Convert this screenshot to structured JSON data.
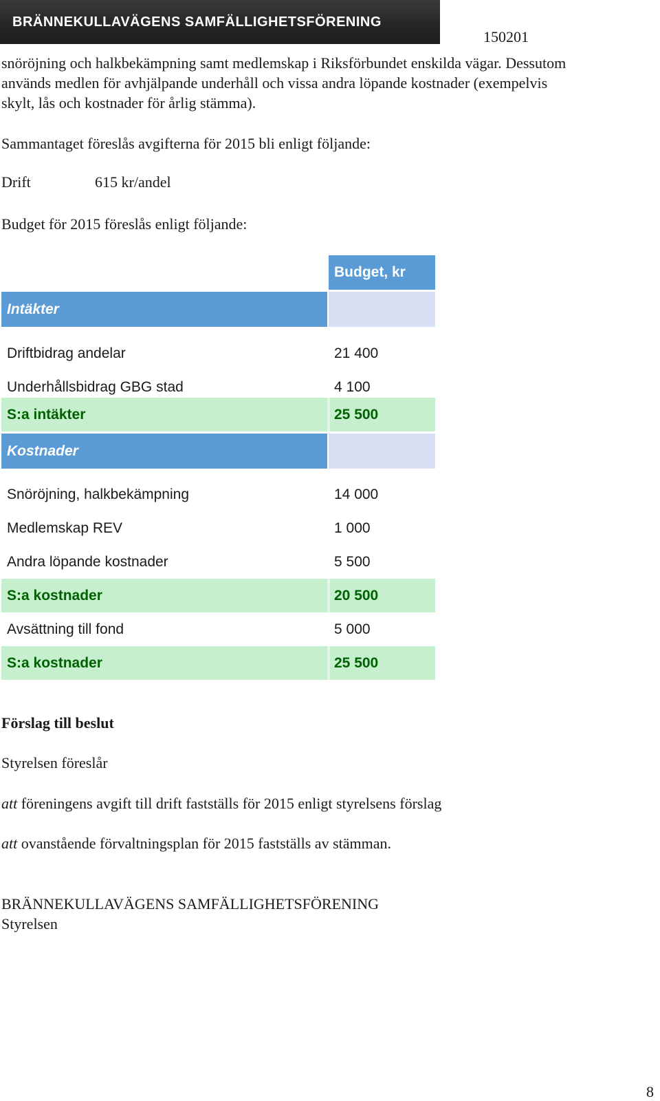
{
  "header": {
    "banner_title": "BRÄNNEKULLAVÄGENS SAMFÄLLIGHETSFÖRENING",
    "date": "150201"
  },
  "intro": {
    "lines": [
      "snöröjning och halkbekämpning samt medlemskap i Riksförbundet enskilda vägar. Dessutom",
      "används medlen för avhjälpande underhåll och vissa andra löpande kostnader (exempelvis",
      "skylt, lås och kostnader för årlig stämma)."
    ],
    "fees_intro": "Sammantaget föreslås avgifterna för 2015 bli enligt följande:",
    "fee_label": "Drift",
    "fee_value": "615 kr/andel",
    "budget_intro": "Budget för 2015 föreslås enligt följande:"
  },
  "budget_table": {
    "column_header": "Budget, kr",
    "income_section": "Intäkter",
    "income_rows": [
      {
        "label": "Driftbidrag andelar",
        "value": "21 400"
      },
      {
        "label": "Underhållsbidrag GBG stad",
        "value": "4 100"
      }
    ],
    "income_total": {
      "label": "S:a intäkter",
      "value": "25 500"
    },
    "cost_section": "Kostnader",
    "cost_rows": [
      {
        "label": "Snöröjning, halkbekämpning",
        "value": "14 000"
      },
      {
        "label": "Medlemskap REV",
        "value": "1 000"
      },
      {
        "label": "Andra löpande kostnader",
        "value": "5 500"
      }
    ],
    "cost_total": {
      "label": "S:a kostnader",
      "value": "20 500"
    },
    "fund_row": {
      "label": "Avsättning till fond",
      "value": "5 000"
    },
    "grand_total": {
      "label": "S:a kostnader",
      "value": "25 500"
    }
  },
  "decision": {
    "heading": "Förslag till beslut",
    "proposer": "Styrelsen föreslår",
    "items": [
      {
        "att": "att",
        "text": " föreningens avgift till drift fastställs för 2015 enligt styrelsens förslag"
      },
      {
        "att": "att",
        "text": " ovanstående förvaltningsplan för 2015 fastställs av stämman."
      }
    ]
  },
  "signature": {
    "org": "BRÄNNEKULLAVÄGENS SAMFÄLLIGHETSFÖRENING",
    "board": "Styrelsen"
  },
  "page_number": "8"
}
